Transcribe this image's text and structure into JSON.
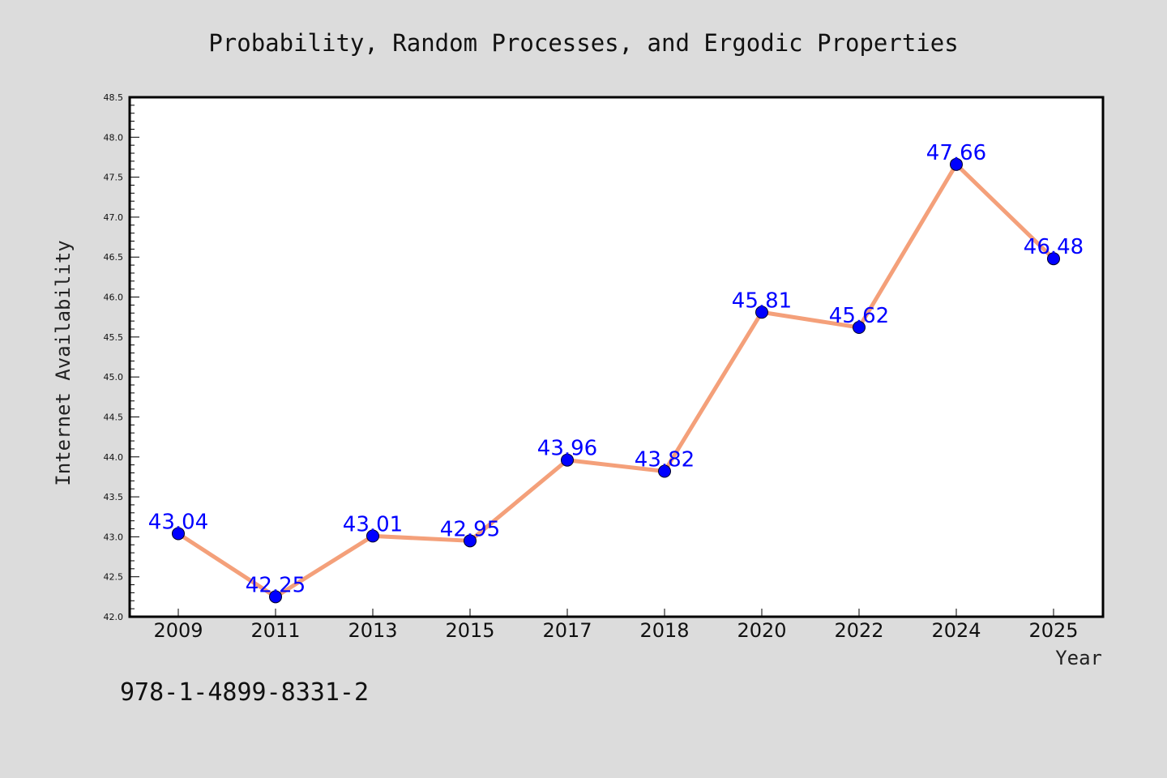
{
  "chart_data": {
    "type": "line",
    "title": "Probability, Random Processes, and Ergodic Properties",
    "xlabel": "Year",
    "ylabel": "Internet Availability",
    "categories": [
      "2009",
      "2011",
      "2013",
      "2015",
      "2017",
      "2018",
      "2020",
      "2022",
      "2024",
      "2025"
    ],
    "series": [
      {
        "values": [
          43.04,
          42.25,
          43.01,
          42.95,
          43.96,
          43.82,
          45.81,
          45.62,
          47.66,
          46.48
        ],
        "line_color": "#f4a07a",
        "marker_color": "#0000ff"
      }
    ],
    "data_labels": [
      "43.04",
      "42.25",
      "43.01",
      "42.95",
      "43.96",
      "43.82",
      "45.81",
      "45.62",
      "47.66",
      "46.48"
    ],
    "ylim": [
      42.0,
      48.5
    ],
    "yticks": [
      "42.0",
      "42.5",
      "43.0",
      "43.5",
      "44.0",
      "44.5",
      "45.0",
      "45.5",
      "46.0",
      "46.5",
      "47.0",
      "47.5",
      "48.0",
      "48.5"
    ],
    "grid": false,
    "legend": "none"
  },
  "footer": {
    "isbn": "978-1-4899-8331-2"
  },
  "colors": {
    "background": "#dcdcdc",
    "plot_background": "#ffffff",
    "line": "#f4a07a",
    "marker": "#0000ff",
    "data_label": "#0000ff"
  }
}
